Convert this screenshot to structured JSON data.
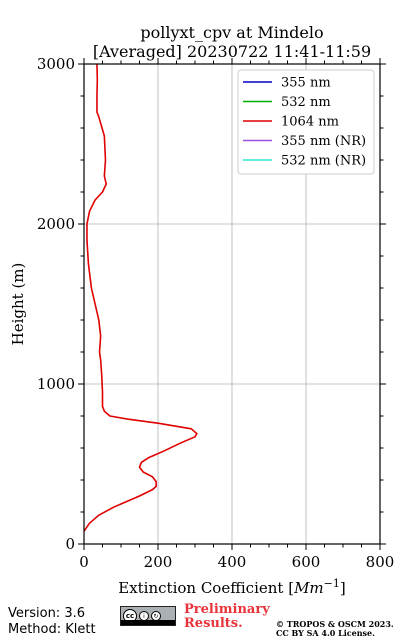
{
  "chart_data": {
    "type": "line",
    "title_line1": "pollyxt_cpv at Mindelo",
    "title_line2": "[Averaged] 20230722 11:41-11:59",
    "xlabel": "Extinction Coefficient",
    "xlabel_unit_base": "Mm",
    "xlabel_unit_exp": "−1",
    "ylabel": "Height (m)",
    "xlim": [
      0,
      800
    ],
    "ylim": [
      0,
      3000
    ],
    "xticks": [
      0,
      200,
      400,
      600,
      800
    ],
    "yticks": [
      0,
      1000,
      2000,
      3000
    ],
    "x_minor_step": 50,
    "y_minor_step": 200,
    "grid": true,
    "legend_position": "top-right",
    "legend": [
      {
        "name": "355 nm",
        "color": "#0000cc"
      },
      {
        "name": "532 nm",
        "color": "#00b200"
      },
      {
        "name": "1064 nm",
        "color": "#e00000"
      },
      {
        "name": "355 nm (NR)",
        "color": "#9d4ddb"
      },
      {
        "name": "532 nm (NR)",
        "color": "#33e5cc"
      }
    ],
    "series": [
      {
        "name": "1064 nm",
        "color": "#e00000",
        "points": [
          [
            0,
            80
          ],
          [
            15,
            130
          ],
          [
            40,
            180
          ],
          [
            80,
            230
          ],
          [
            110,
            260
          ],
          [
            150,
            300
          ],
          [
            185,
            340
          ],
          [
            195,
            360
          ],
          [
            195,
            390
          ],
          [
            185,
            420
          ],
          [
            160,
            450
          ],
          [
            150,
            480
          ],
          [
            155,
            510
          ],
          [
            175,
            540
          ],
          [
            215,
            580
          ],
          [
            260,
            630
          ],
          [
            300,
            670
          ],
          [
            305,
            690
          ],
          [
            290,
            720
          ],
          [
            200,
            755
          ],
          [
            120,
            780
          ],
          [
            70,
            800
          ],
          [
            55,
            830
          ],
          [
            50,
            860
          ],
          [
            50,
            950
          ],
          [
            48,
            1050
          ],
          [
            45,
            1150
          ],
          [
            42,
            1200
          ],
          [
            45,
            1300
          ],
          [
            40,
            1400
          ],
          [
            30,
            1500
          ],
          [
            20,
            1600
          ],
          [
            12,
            1750
          ],
          [
            8,
            1900
          ],
          [
            8,
            2000
          ],
          [
            15,
            2080
          ],
          [
            30,
            2150
          ],
          [
            50,
            2200
          ],
          [
            60,
            2250
          ],
          [
            55,
            2300
          ],
          [
            58,
            2400
          ],
          [
            55,
            2550
          ],
          [
            45,
            2630
          ],
          [
            40,
            2670
          ],
          [
            35,
            2700
          ],
          [
            35,
            2800
          ],
          [
            36,
            2900
          ],
          [
            35,
            3000
          ]
        ]
      }
    ]
  },
  "footer": {
    "version_line": "Version: 3.6",
    "method_line": "Method: Klett",
    "license_badge_text": "cc",
    "license_badge_by": "BY",
    "license_badge_sa": "SA",
    "preliminary_line1": "Preliminary",
    "preliminary_line2": "Results.",
    "copyright_line1": "© TROPOS & OSCM 2023.",
    "copyright_line2": "CC BY SA 4.0 License."
  }
}
